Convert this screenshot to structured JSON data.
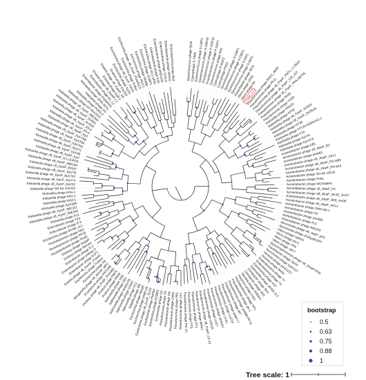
{
  "tree": {
    "highlight_label": "Phage_LC1",
    "leaves": [
      "Synechococcus phage Syn5",
      "Cyanophage S-TIM5",
      "Synechococcus phage S-CBP2",
      "Synechococcus phage S-CBP42",
      "Prochlorococcus phage P-SSP10",
      "Prochlorococcus phage P-SSP7",
      "Synechococcus phage P60",
      "Cyanophage P-RSP2",
      "Cyanophage PSS2",
      "Synechococcus phage S-CBP1",
      "Synechococcus phage S-CBP3",
      "Synechococcus phage S-RIP1",
      "Synechococcus phage S-RIP2",
      "Roseobacter phage SIO1",
      "Vibrio phage VP93",
      "Vibrio phage N4",
      "Phage_LC1",
      "Pseudomonas phage PAO1_Ab05",
      "Pseudomonas phage PA11",
      "Pseudomonas phage vB_PaeP_PAO1_1-15pyo",
      "Pseudomonas phage vB_PaeP_130_113",
      "Pseudomonas phage vB_PaeP_PPA-ABTNL",
      "Pseudomonas phage PA26",
      "Pseudomonas phage YH30",
      "Klebsiella phage PRA33",
      "Klebsiella phage KP32",
      "Klebsiella phage vB_KpnP_SU503",
      "Klebsiella phage vB_KpnP_SU552A",
      "Klebsiella phage KP34",
      "Klebsiella phage NTUH-K2044-K1-1",
      "Klebsiella phage F19",
      "Klebsiella phage KpV41",
      "Klebsiella phage KpV475",
      "Acinetobacter phage AB1",
      "Acinetobacter phage vB_AbaP_B3",
      "Acinetobacter phage phiAB1",
      "Acinetobacter phage vB_AbaP_AS11",
      "Acinetobacter phage vB_AbaP_PD-AB9",
      "Acinetobacter phage vB_AbaP_PD-6A3",
      "Acinetobacter phage SH-Ab 15519",
      "Acinetobacter phage Petty",
      "Acinetobacter phage WCHABP5",
      "Acinetobacter phage vB_AbaP_P2",
      "Acinetobacter phage vB_AbaP_46-62_Aci07",
      "Acinetobacter phage vB_AbaP_B09_Aci08",
      "Acinetobacter phage vB_AbaP_AS12",
      "Acinetobacter phage SWH-Ab-1",
      "Acinetobacter phage D2",
      "Acinetobacter phage phiAB6",
      "Acinetobacter phage Fri1",
      "Acinetobacter phage IME200",
      "Aeromonas phage vB_AspP_pD1",
      "Aeromonas phage 25AhydR2PP",
      "Vibrio phage VpKK5",
      "Vibrio phage phi 2",
      "Vibrio phage VP4",
      "Vibrio phage JSF7",
      "Stenotrophomonas phage vB_SmaP-PH8",
      "Caulobacter phage Sp16",
      "Aeromonas phage GAP227",
      "Yersinia phage phiA1122",
      "Yersinia phage Berlin",
      "Enterobacteria phage T7",
      "Enterobacteria phage T3",
      "Escherichia phage K1F",
      "Salmonella phage phiSG-JL2",
      "Citrobacter phage SH1",
      "Citrobacter phage SH2",
      "Serratia phage 2050H1",
      "Kluyvera phage Kvp1",
      "Pectobacterium phage PP1",
      "Pseudomonas phage gh-1",
      "Pseudomonas phage phiIBB-PF7A",
      "Pseudomonas phage Bf7",
      "Pseudomonas phage phikF77",
      "Pseudomonas phage LUZ19",
      "Pseudomonas phage LKA1",
      "Pseudomonas phage phiKMV",
      "Pseudomonas phage LUZ7",
      "Pseudomonas phage LKD16",
      "Pseudomonas phage vB_PaeP_C2-10",
      "Pseudomonas phage MPK7",
      "Pseudomonas phage PT2",
      "Pseudomonas phage PT5",
      "Pseudomonas phage Phi-S1",
      "Pseudomonas phage 14-1",
      "Pseudomonas phage PB1",
      "Pseudomonas phage LMA2",
      "Pseudomonas phage SN",
      "Pseudomonas phage F8",
      "Escherichia phage C5",
      "Escherichia phage ECBP5",
      "Escherichia phage PhiPB4",
      "Escherichia phage vB_EcoP_SU10",
      "Escherichia phage phi80-18",
      "Escherichia phage HK620",
      "Shigella phage Sf6",
      "Salmonella phage P22",
      "Salmonella phage ST64T",
      "Salmonella phage epsilon34",
      "Salmonella phage SE1",
      "Salmonella phage Vi06",
      "Proteus phage PM16",
      "Proteus phage PM75",
      "Proteus phage vB_PmiP_Pm5460",
      "Providencia phage PSTCR5",
      "Morganella phage vB_MmoP_MP2",
      "Escherichia phage N4",
      "Escherichia phage Pollock",
      "Erwinia phage vB_EamP_Frozen",
      "Enterobacter phage EcP1",
      "Enterobacter phage phiEap-3",
      "Enterobacter phage E-2",
      "Dickeya phage Ninurta",
      "Dickeya phage DagaP",
      "Pectobacterium phage Peat1",
      "Pectobacterium phage PP16",
      "Pectobacterium phage My1",
      "Escherichia phage 64795_ec1",
      "Enterobacter phage E-3",
      "Enterobacter phage F20",
      "Klebsiella phage K11",
      "Klebsiella phage vB_KpnP_IME205",
      "Klebsiella phage vB_KpnP_IME321",
      "Klebsiella phage KpV289",
      "Klebsiella phage KN3-1",
      "Klebsiella phage KN1-1",
      "Klebsiella phage KN4-1",
      "Klebsiella phage SH-Kp 152410",
      "Klebsiella phage vB_KpnP_KpV52",
      "Klebsiella phage vB_KpnP_KpV74",
      "Klebsiella phage vB_KpnP_KpV767",
      "Klebsiella phage vB_KpnP_KpV79",
      "Klebsiella phage vB_KpnP_BIS47",
      "Klebsiella phage vB_KpnP_IME184",
      "Klebsiella phage vB_KpnP_K1-ULIP33",
      "Klebsiella phage vB_KpnP_Kp2",
      "Klebsiella phage vB_KpnP_KpV48",
      "Klebsiella phage vB_KpnP_KpV71",
      "Klebsiella phage vB_KpnP_KpV763",
      "Klebsiella phage vB_KpnP_KpV766",
      "Klebsiella phage vB_KpnP_KpV768",
      "Klebsiella phage vB_KpnP_Kp1",
      "Klebsiella phage vB_KpnP_K5-2",
      "Klebsiella phage vB_KpnP_K5-4",
      "Klebsiella phage vB_KpnP_SU318",
      "Klebsiella phage vB_KpnP_SU561",
      "Klebsiella phage vB_KpnP_IME304",
      "Klebsiella phage KP-Rio/2015",
      "Klebsiella phage PhiK5-2",
      "Klebsiella phage K5",
      "Klebsiella phage 2044-307w",
      "Enterobacter phage EspM4VN",
      "Enterobacter phage Ec_L1",
      "Erwinia phage vB_EamP-L1",
      "Erwinia phage Ea9-2",
      "Erwinia phage vB_EamP_S6",
      "Erwinia phage Era103",
      "Escherichia phage Kp15",
      "Escherichia phage vB_EcoP_GA2A",
      "Escherichia phage Pollux",
      "Escherichia phage vB_EcoP_PhAPEC5",
      "Escherichia phage PE3-1",
      "Escherichia phage Sludge",
      "Escherichia phage ECBP1",
      "Escherichia phage EC1-UPM",
      "Enterobacteria phage K30",
      "Enterobacteria phage phiEco32",
      "Enterobacteria phage CUS-3",
      "Enterobacteria phage HK542",
      "Enterobacteria phage Bp4"
    ]
  },
  "legend": {
    "title": "bootstrap",
    "items": [
      "0.5",
      "0.63",
      "0.75",
      "0.88",
      "1"
    ]
  },
  "scale": {
    "label": "Tree scale: 1"
  },
  "colors": {
    "branch": "#222222",
    "bootstrap": "#3b3fb0",
    "highlight": "#e0303a"
  }
}
